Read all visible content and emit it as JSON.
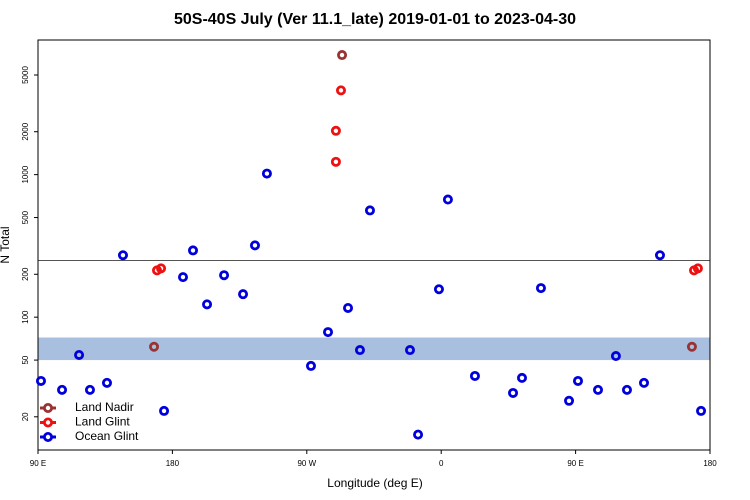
{
  "chart_data": {
    "type": "scatter",
    "title": "50S-40S July (Ver 11.1_late)   2019-01-01 to 2023-04-30",
    "x_label": "Longitude (deg E)",
    "y_label": "N Total",
    "xlim": [
      90,
      540
    ],
    "xticks": [
      {
        "value": 90,
        "label": "90 E"
      },
      180,
      {
        "value": 270,
        "label": "90 W"
      },
      {
        "value": 360,
        "label": "0"
      },
      {
        "value": 450,
        "label": "90 E"
      },
      {
        "value": 540,
        "label": "180"
      }
    ],
    "ylim": [
      11.7,
      8800
    ],
    "yticks": [
      20,
      50,
      100,
      200,
      500,
      1000,
      2000,
      5000
    ],
    "log_y": true,
    "hline": 250,
    "band": [
      50,
      72
    ],
    "legend": "lower left",
    "series": [
      {
        "name": "Land Nadir",
        "color": "#993333",
        "x": [
          293.6,
          167.7,
          527.9
        ],
        "values": [
          6900,
          62,
          62
        ]
      },
      {
        "name": "Land Glint",
        "color": "#ee1111",
        "x": [
          292.9,
          289.5,
          289.5,
          169.7,
          172.4,
          529.3,
          531.9
        ],
        "values": [
          3900,
          2030,
          1230,
          213,
          220,
          213,
          220
        ]
      },
      {
        "name": "Ocean Glint",
        "color": "#0000dd",
        "x": [
          92.0,
          106.1,
          117.5,
          124.8,
          136.2,
          146.9,
          174.4,
          187.1,
          193.8,
          203.2,
          214.6,
          227.3,
          235.3,
          243.3,
          272.8,
          284.2,
          297.6,
          305.6,
          312.3,
          339.1,
          344.5,
          358.5,
          364.5,
          382.6,
          408.1,
          414.1,
          426.8,
          445.6,
          451.6,
          465.0,
          477.0,
          484.4,
          495.8,
          506.5,
          534.0
        ],
        "values": [
          35.7,
          30.9,
          54.3,
          30.9,
          34.6,
          272,
          22.0,
          191,
          294,
          123,
          197,
          145,
          319,
          1017,
          45.5,
          78.6,
          116,
          58.8,
          561,
          58.8,
          15.0,
          157,
          669,
          38.7,
          29.4,
          37.5,
          160,
          25.9,
          35.7,
          30.9,
          53.4,
          30.9,
          34.6,
          272,
          22.0
        ]
      }
    ]
  }
}
